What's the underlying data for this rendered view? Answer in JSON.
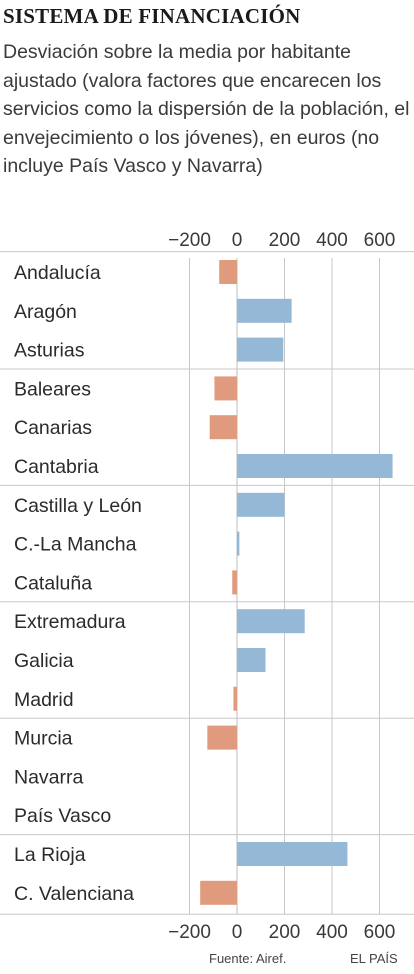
{
  "title": "SISTEMA DE FINANCIACIÓN",
  "subtitle": "Desviación sobre la media por habitante ajustado (valora factores que encarecen los servicios como la dispersión de la población, el envejecimiento o los jóvenes), en euros (no incluye País Vasco y Navarra)",
  "source": "Fuente: Airef.",
  "brand": "EL PAÍS",
  "colors": {
    "positive": "#94b8d6",
    "negative": "#e09a7d",
    "grid": "#c8c8c8",
    "zero": "#bdbdbd"
  },
  "chart_data": {
    "type": "bar",
    "orientation": "horizontal",
    "categories": [
      "Andalucía",
      "Aragón",
      "Asturias",
      "Baleares",
      "Canarias",
      "Cantabria",
      "Castilla y León",
      "C.-La Mancha",
      "Cataluña",
      "Extremadura",
      "Galicia",
      "Madrid",
      "Murcia",
      "Navarra",
      "País Vasco",
      "La Rioja",
      "C. Valenciana"
    ],
    "values": [
      -75,
      230,
      195,
      -95,
      -115,
      655,
      200,
      10,
      -20,
      285,
      120,
      -15,
      -125,
      null,
      null,
      465,
      -155
    ],
    "xlim": [
      -290,
      680
    ],
    "xticks": [
      -200,
      0,
      200,
      400,
      600
    ],
    "tick_labels": [
      "−200",
      "0",
      "200",
      "400",
      "600"
    ],
    "groups_of": 3,
    "grid": true
  }
}
